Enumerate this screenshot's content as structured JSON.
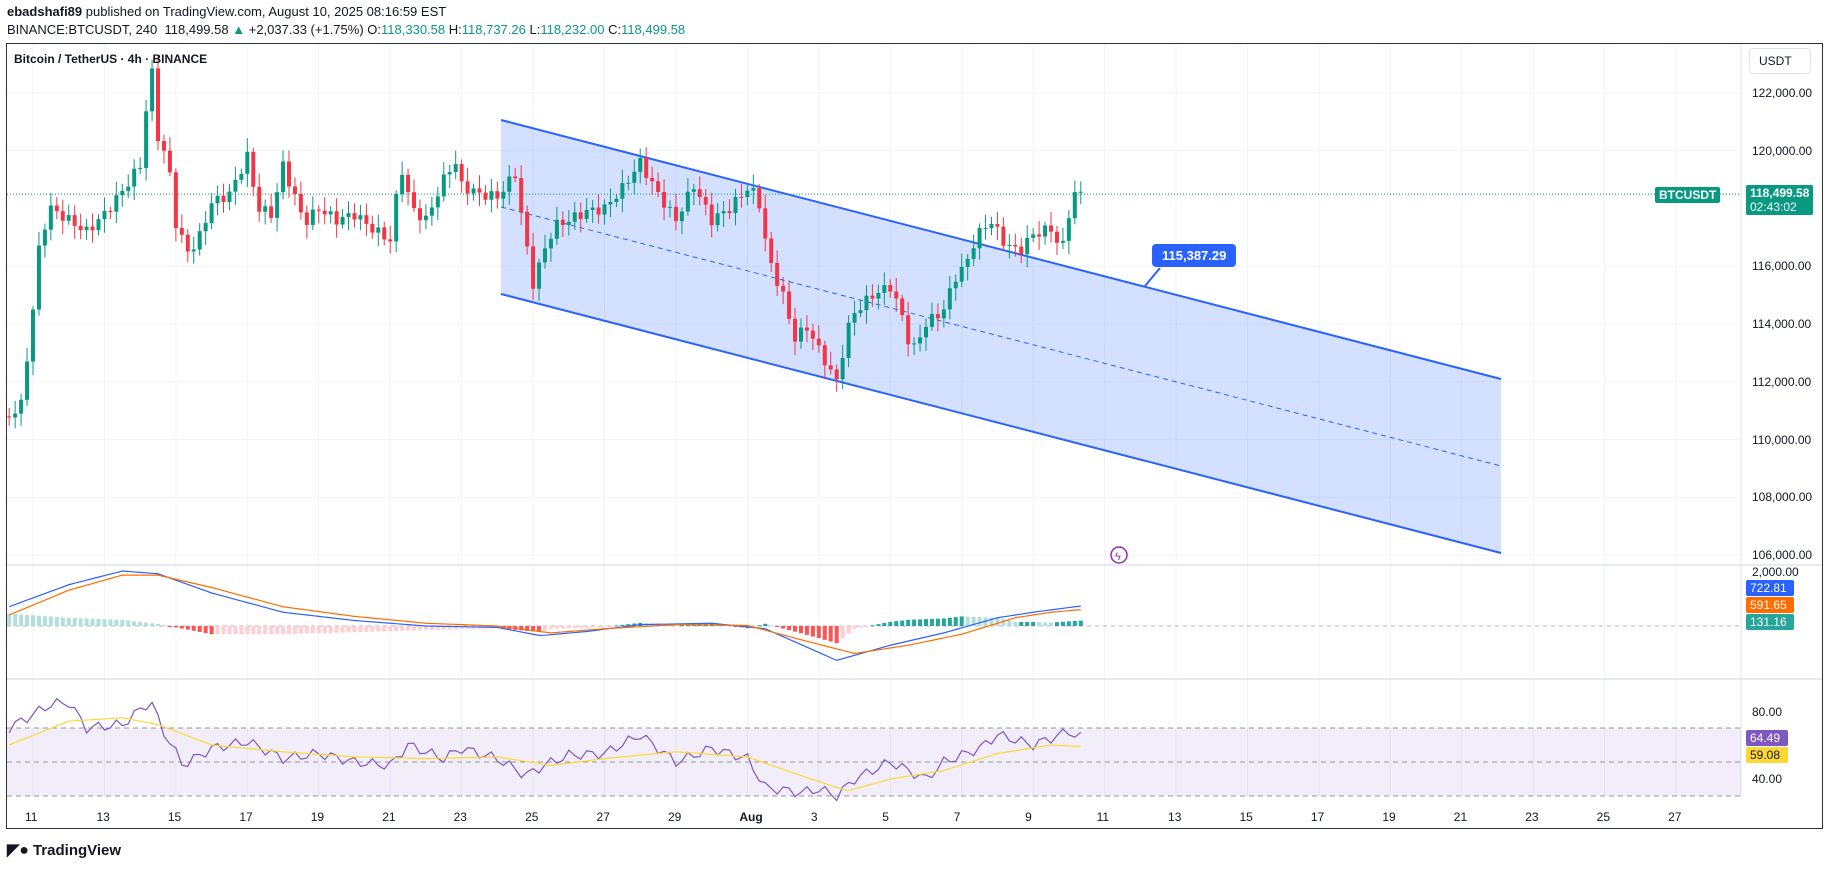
{
  "header": {
    "author": "ebadshafi89",
    "published": "published on TradingView.com, August 10, 2025 08:16:59 EST",
    "symbol": "BINANCE:BTCUSDT, 240",
    "last": "118,499.58",
    "change": "+2,037.33 (+1.75%)",
    "o_label": "O:",
    "o": "118,330.58",
    "h_label": "H:",
    "h": "118,737.26",
    "l_label": "L:",
    "l": "118,232.00",
    "c_label": "C:",
    "c": "118,499.58"
  },
  "chart_title": "Bitcoin / TetherUS · 4h · BINANCE",
  "currency": "USDT",
  "price_ticks": [
    "122,000.00",
    "120,000.00",
    "116,000.00",
    "114,000.00",
    "112,000.00",
    "110,000.00",
    "108,000.00",
    "106,000.00"
  ],
  "price_tick_values": [
    122000,
    120000,
    116000,
    114000,
    112000,
    110000,
    108000,
    106000
  ],
  "last_price_tag": {
    "symbol": "BTCUSDT",
    "price": "118,499.58",
    "countdown": "02:43:02"
  },
  "channel_label": "115,387.29",
  "macd": {
    "axis": "2,000.00",
    "macd": "722.81",
    "signal": "591.65",
    "hist": "131.16"
  },
  "rsi": {
    "axis_hi": "80.00",
    "axis_lo": "40.00",
    "rsi": "64.49",
    "ma": "59.08"
  },
  "time_labels": [
    "11",
    "13",
    "15",
    "17",
    "19",
    "21",
    "23",
    "25",
    "27",
    "29",
    "Aug",
    "3",
    "5",
    "7",
    "9",
    "11",
    "13",
    "15",
    "17",
    "19",
    "21",
    "23",
    "25",
    "27"
  ],
  "footer": {
    "brand": "TradingView"
  },
  "colors": {
    "up": "#089981",
    "down": "#f23645",
    "channel": "#2962ff",
    "macd": "#2962ff",
    "signal": "#ff6d00",
    "rsi": "#7e57c2",
    "rsi_ma": "#fdd835"
  },
  "chart_data": {
    "type": "candlestick",
    "title": "Bitcoin / TetherUS · 4h · BINANCE",
    "x_unit": "days since Jul 11 00:00",
    "ylim": [
      105500,
      123500
    ],
    "close_path": [
      [
        -0.67,
        110800
      ],
      [
        -0.33,
        111200
      ],
      [
        0,
        114500
      ],
      [
        0.2,
        117000
      ],
      [
        0.5,
        118000
      ],
      [
        1,
        117600
      ],
      [
        1.5,
        117200
      ],
      [
        2,
        117800
      ],
      [
        2.5,
        118600
      ],
      [
        3,
        119500
      ],
      [
        3.2,
        121800
      ],
      [
        3.35,
        122800
      ],
      [
        3.5,
        120500
      ],
      [
        3.8,
        119500
      ],
      [
        4,
        117500
      ],
      [
        4.3,
        116500
      ],
      [
        4.6,
        116800
      ],
      [
        5,
        118200
      ],
      [
        5.5,
        118500
      ],
      [
        6,
        119800
      ],
      [
        6.3,
        118000
      ],
      [
        6.7,
        117800
      ],
      [
        7,
        119500
      ],
      [
        7.3,
        118500
      ],
      [
        7.6,
        117500
      ],
      [
        8,
        118000
      ],
      [
        8.5,
        117600
      ],
      [
        9,
        117800
      ],
      [
        9.5,
        117300
      ],
      [
        10,
        116900
      ],
      [
        10.3,
        119500
      ],
      [
        10.6,
        118000
      ],
      [
        11,
        117600
      ],
      [
        11.5,
        119000
      ],
      [
        11.8,
        119700
      ],
      [
        12,
        118800
      ],
      [
        12.5,
        118500
      ],
      [
        13,
        118400
      ],
      [
        13.5,
        119200
      ],
      [
        13.8,
        116800
      ],
      [
        14,
        115400
      ],
      [
        14.3,
        116500
      ],
      [
        14.6,
        117400
      ],
      [
        15,
        117600
      ],
      [
        15.5,
        117900
      ],
      [
        16,
        118000
      ],
      [
        16.5,
        118700
      ],
      [
        17,
        119600
      ],
      [
        17.5,
        118500
      ],
      [
        18,
        117600
      ],
      [
        18.5,
        118800
      ],
      [
        19,
        117600
      ],
      [
        19.5,
        118000
      ],
      [
        20,
        118700
      ],
      [
        20.3,
        118400
      ],
      [
        20.6,
        116200
      ],
      [
        21,
        115000
      ],
      [
        21.3,
        113500
      ],
      [
        21.7,
        113900
      ],
      [
        22,
        113100
      ],
      [
        22.5,
        112000
      ],
      [
        22.8,
        113800
      ],
      [
        23,
        114400
      ],
      [
        23.5,
        115000
      ],
      [
        24,
        115300
      ],
      [
        24.3,
        114400
      ],
      [
        24.6,
        113000
      ],
      [
        25,
        114000
      ],
      [
        25.5,
        114500
      ],
      [
        25.8,
        115600
      ],
      [
        26.1,
        116000
      ],
      [
        26.4,
        117000
      ],
      [
        26.8,
        117600
      ],
      [
        27.2,
        116800
      ],
      [
        27.6,
        116500
      ],
      [
        28,
        117100
      ],
      [
        28.5,
        117300
      ],
      [
        28.8,
        116500
      ],
      [
        29.1,
        118500
      ],
      [
        29.3,
        118500
      ]
    ],
    "macd_path": [
      [
        -0.67,
        700
      ],
      [
        1,
        1500
      ],
      [
        2.5,
        2000
      ],
      [
        3.5,
        1900
      ],
      [
        5,
        1200
      ],
      [
        7,
        500
      ],
      [
        9,
        200
      ],
      [
        11,
        0
      ],
      [
        13,
        -50
      ],
      [
        14.2,
        -350
      ],
      [
        15.5,
        -200
      ],
      [
        17,
        50
      ],
      [
        19,
        100
      ],
      [
        20.5,
        -100
      ],
      [
        22.5,
        -1250
      ],
      [
        24,
        -700
      ],
      [
        25.5,
        -250
      ],
      [
        27,
        300
      ],
      [
        28,
        500
      ],
      [
        29.3,
        722
      ]
    ],
    "signal_path": [
      [
        -0.67,
        400
      ],
      [
        1,
        1300
      ],
      [
        2.5,
        1850
      ],
      [
        3.5,
        1850
      ],
      [
        5,
        1400
      ],
      [
        7,
        700
      ],
      [
        9,
        350
      ],
      [
        11,
        100
      ],
      [
        13,
        0
      ],
      [
        14.5,
        -250
      ],
      [
        16,
        -100
      ],
      [
        18,
        50
      ],
      [
        20,
        20
      ],
      [
        21.5,
        -500
      ],
      [
        23,
        -1000
      ],
      [
        24.5,
        -700
      ],
      [
        26,
        -300
      ],
      [
        27.5,
        300
      ],
      [
        28.5,
        500
      ],
      [
        29.3,
        592
      ]
    ],
    "rsi_path": [
      [
        -0.67,
        70
      ],
      [
        0.5,
        84
      ],
      [
        1,
        85
      ],
      [
        1.5,
        70
      ],
      [
        2.5,
        72
      ],
      [
        3.3,
        86
      ],
      [
        3.6,
        70
      ],
      [
        4.2,
        48
      ],
      [
        5,
        58
      ],
      [
        6,
        62
      ],
      [
        7,
        52
      ],
      [
        8,
        55
      ],
      [
        9,
        50
      ],
      [
        10,
        48
      ],
      [
        10.5,
        60
      ],
      [
        11.5,
        52
      ],
      [
        12,
        58
      ],
      [
        13,
        52
      ],
      [
        13.8,
        42
      ],
      [
        14.3,
        48
      ],
      [
        15,
        54
      ],
      [
        16,
        55
      ],
      [
        17,
        66
      ],
      [
        18,
        50
      ],
      [
        19,
        58
      ],
      [
        20,
        52
      ],
      [
        20.5,
        35
      ],
      [
        21.5,
        32
      ],
      [
        22,
        34
      ],
      [
        22.5,
        30
      ],
      [
        23,
        40
      ],
      [
        24,
        50
      ],
      [
        24.5,
        45
      ],
      [
        25,
        40
      ],
      [
        25.5,
        50
      ],
      [
        26.5,
        58
      ],
      [
        27,
        66
      ],
      [
        28,
        60
      ],
      [
        29,
        68
      ],
      [
        29.3,
        64.5
      ]
    ],
    "rsi_ma_path": [
      [
        -0.67,
        60
      ],
      [
        1,
        74
      ],
      [
        2.5,
        76
      ],
      [
        3.5,
        72
      ],
      [
        5,
        60
      ],
      [
        7,
        56
      ],
      [
        9,
        53
      ],
      [
        11,
        52
      ],
      [
        13,
        53
      ],
      [
        14.5,
        48
      ],
      [
        16,
        52
      ],
      [
        18,
        56
      ],
      [
        20,
        53
      ],
      [
        21.5,
        42
      ],
      [
        22.8,
        33
      ],
      [
        24,
        40
      ],
      [
        25.5,
        45
      ],
      [
        27,
        55
      ],
      [
        28.5,
        60
      ],
      [
        29.3,
        59.1
      ]
    ]
  }
}
